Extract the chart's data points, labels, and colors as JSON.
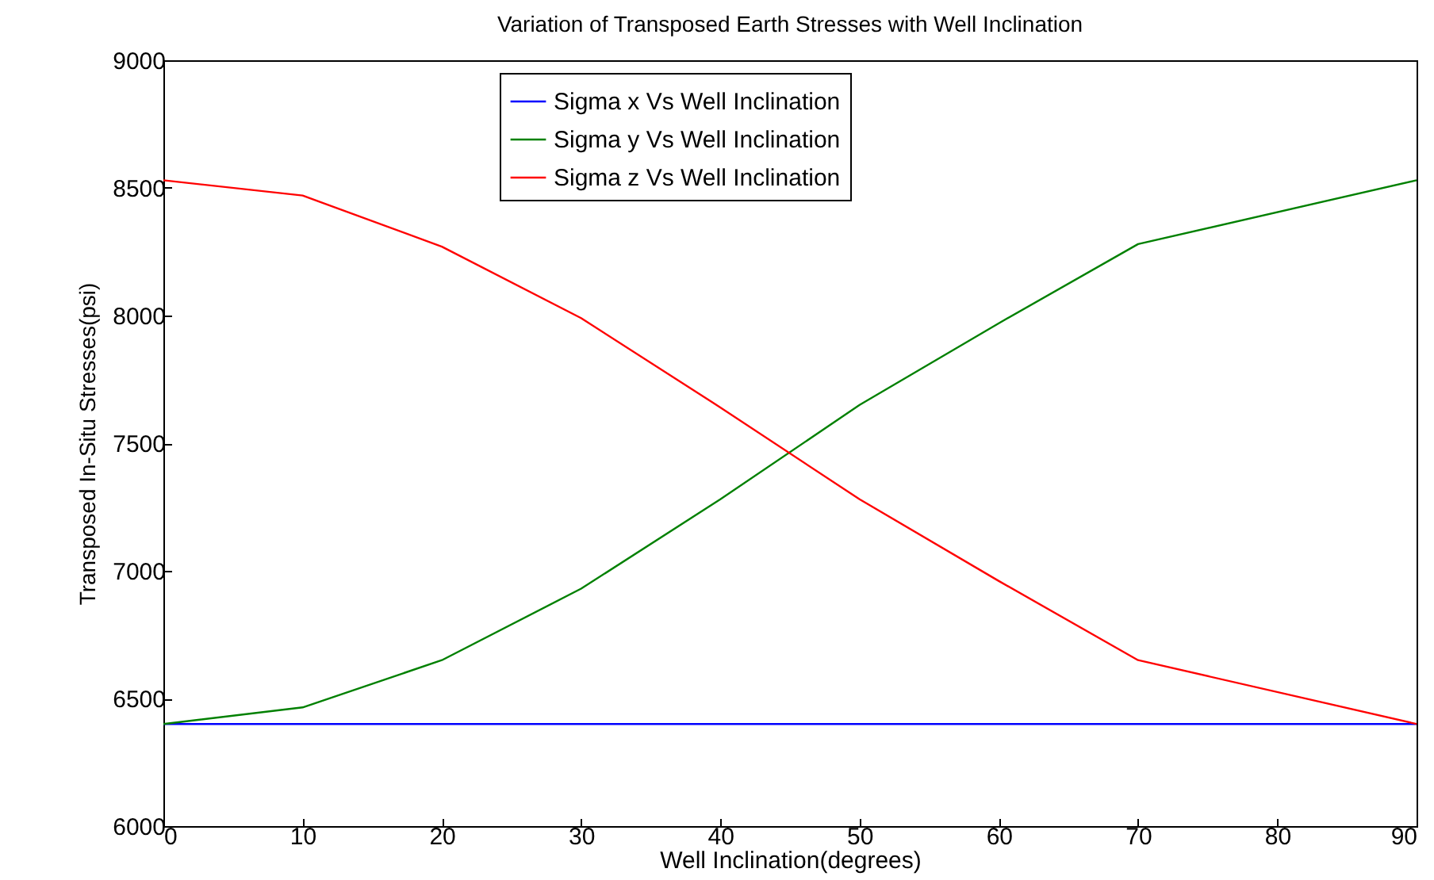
{
  "chart_data": {
    "type": "line",
    "title": "Variation of Transposed Earth Stresses with Well Inclination",
    "xlabel": "Well Inclination(degrees)",
    "ylabel": "Transposed In-Situ Stresses(psi)",
    "x": [
      0,
      10,
      20,
      30,
      40,
      50,
      60,
      70,
      90
    ],
    "series": [
      {
        "name": "Sigma x Vs Well Inclination",
        "color": "#0000ff",
        "values": [
          6400,
          6400,
          6400,
          6400,
          6400,
          6400,
          6400,
          6400,
          6400
        ]
      },
      {
        "name": "Sigma y Vs Well Inclination",
        "color": "#008000",
        "values": [
          6400,
          6465,
          6650,
          6930,
          7280,
          7650,
          7970,
          8280,
          8530
        ]
      },
      {
        "name": "Sigma z Vs Well Inclination",
        "color": "#ff0000",
        "values": [
          8530,
          8470,
          8270,
          7990,
          7640,
          7280,
          6960,
          6650,
          6400
        ]
      }
    ],
    "xlim": [
      0,
      90
    ],
    "xticks": [
      0,
      10,
      20,
      30,
      40,
      50,
      60,
      70,
      80,
      90
    ],
    "ylim": [
      6000,
      9000
    ],
    "yticks": [
      6000,
      6500,
      7000,
      7500,
      8000,
      8500,
      9000
    ],
    "grid": false,
    "legend": "top",
    "marker": "none",
    "line_style": "solid"
  }
}
